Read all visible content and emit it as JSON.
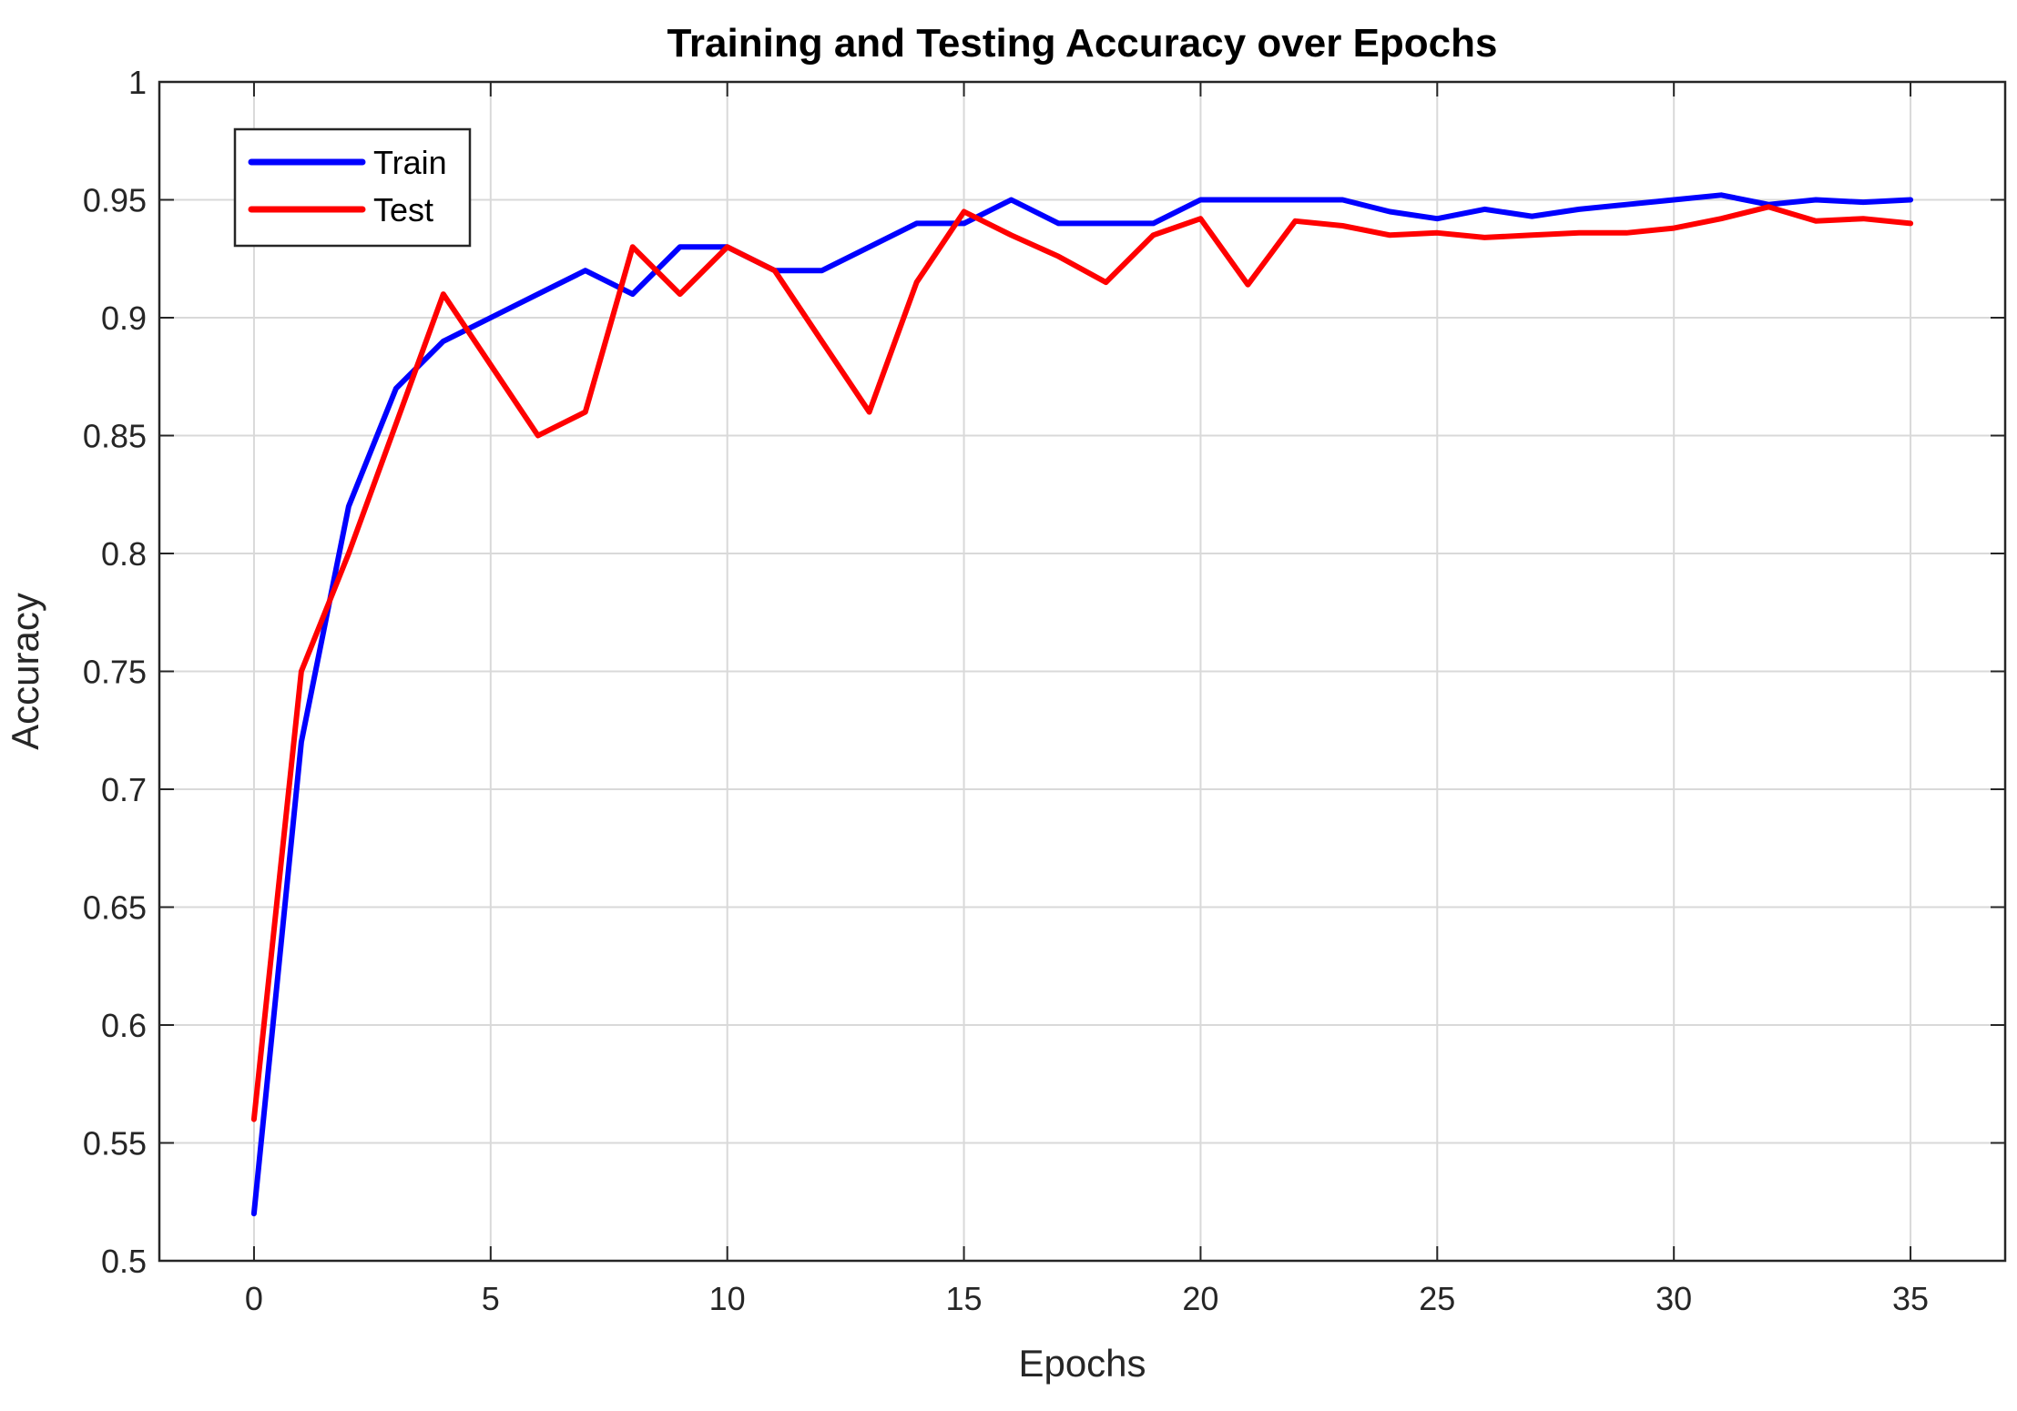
{
  "chart_data": {
    "type": "line",
    "title": "Training and Testing Accuracy over Epochs",
    "xlabel": "Epochs",
    "ylabel": "Accuracy",
    "xlim": [
      -2,
      37
    ],
    "ylim": [
      0.5,
      1
    ],
    "xticks": [
      0,
      5,
      10,
      15,
      20,
      25,
      30,
      35
    ],
    "xtick_labels": [
      "0",
      "5",
      "10",
      "15",
      "20",
      "25",
      "30",
      "35"
    ],
    "yticks": [
      0.5,
      0.55,
      0.6,
      0.65,
      0.7,
      0.75,
      0.8,
      0.85,
      0.9,
      0.95,
      1
    ],
    "ytick_labels": [
      "0.5",
      "0.55",
      "0.6",
      "0.65",
      "0.7",
      "0.75",
      "0.8",
      "0.85",
      "0.9",
      "0.95",
      "1"
    ],
    "grid": true,
    "legend_position": "top-left",
    "x": [
      0,
      1,
      2,
      3,
      4,
      5,
      6,
      7,
      8,
      9,
      10,
      11,
      12,
      13,
      14,
      15,
      16,
      17,
      18,
      19,
      20,
      21,
      22,
      23,
      24,
      25,
      26,
      27,
      28,
      29,
      30,
      31,
      32,
      33,
      34,
      35
    ],
    "series": [
      {
        "name": "Train",
        "color": "#0000ff",
        "values": [
          0.52,
          0.72,
          0.82,
          0.87,
          0.89,
          0.9,
          0.91,
          0.92,
          0.91,
          0.93,
          0.93,
          0.92,
          0.92,
          0.93,
          0.94,
          0.94,
          0.95,
          0.94,
          0.94,
          0.94,
          0.95,
          0.95,
          0.95,
          0.95,
          0.945,
          0.942,
          0.946,
          0.943,
          0.946,
          0.948,
          0.95,
          0.952,
          0.948,
          0.95,
          0.949,
          0.95
        ]
      },
      {
        "name": "Test",
        "color": "#ff0000",
        "values": [
          0.56,
          0.75,
          0.8,
          0.855,
          0.91,
          0.88,
          0.85,
          0.86,
          0.93,
          0.91,
          0.93,
          0.92,
          0.89,
          0.86,
          0.915,
          0.945,
          0.935,
          0.926,
          0.915,
          0.935,
          0.942,
          0.914,
          0.941,
          0.939,
          0.935,
          0.936,
          0.934,
          0.935,
          0.936,
          0.936,
          0.938,
          0.942,
          0.947,
          0.941,
          0.942,
          0.94
        ]
      }
    ]
  }
}
